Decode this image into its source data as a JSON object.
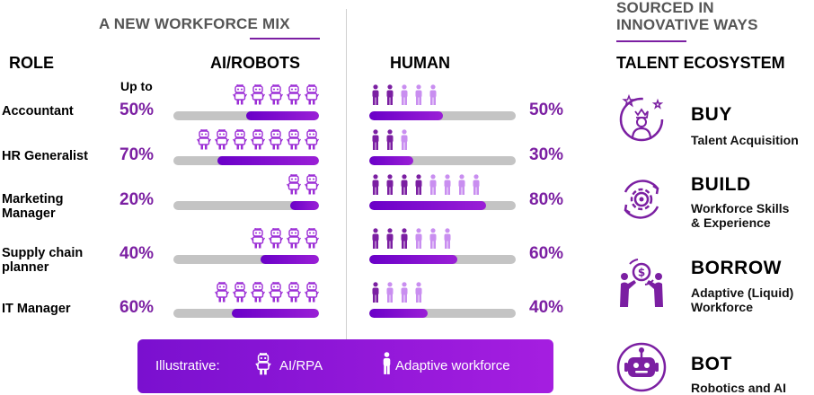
{
  "mix": {
    "title": "A NEW WORKFORCE MIX",
    "role_header": "ROLE",
    "robots_header": "AI/ROBOTS",
    "human_header": "HUMAN",
    "up_to": "Up to"
  },
  "roles": [
    {
      "name": "Accountant",
      "ai_pct": "50%",
      "human_pct": "50%",
      "ai_share": 0.5,
      "human_share": 0.5,
      "ai_icons": 5,
      "human_icons": 5,
      "human_dark": 2
    },
    {
      "name": "HR Generalist",
      "ai_pct": "70%",
      "human_pct": "30%",
      "ai_share": 0.7,
      "human_share": 0.3,
      "ai_icons": 7,
      "human_icons": 3,
      "human_dark": 2
    },
    {
      "name": "Marketing Manager",
      "ai_pct": "20%",
      "human_pct": "80%",
      "ai_share": 0.2,
      "human_share": 0.8,
      "ai_icons": 2,
      "human_icons": 8,
      "human_dark": 4
    },
    {
      "name": "Supply chain planner",
      "ai_pct": "40%",
      "human_pct": "60%",
      "ai_share": 0.4,
      "human_share": 0.6,
      "ai_icons": 4,
      "human_icons": 6,
      "human_dark": 3
    },
    {
      "name": "IT Manager",
      "ai_pct": "60%",
      "human_pct": "40%",
      "ai_share": 0.6,
      "human_share": 0.4,
      "ai_icons": 6,
      "human_icons": 4,
      "human_dark": 1
    }
  ],
  "legend": {
    "label": "Illustrative:",
    "ai_label": "AI/RPA",
    "human_label": "Adaptive workforce"
  },
  "ecosystem": {
    "title_line1": "SOURCED IN",
    "title_line2": "INNOVATIVE WAYS",
    "header": "TALENT ECOSYSTEM",
    "items": [
      {
        "name": "BUY",
        "desc1": "Talent Acquisition",
        "desc2": "",
        "icon": "crown-person-icon"
      },
      {
        "name": "BUILD",
        "desc1": "Workforce Skills",
        "desc2": "& Experience",
        "icon": "gear-cycle-icon"
      },
      {
        "name": "BORROW",
        "desc1": "Adaptive (Liquid)",
        "desc2": "Workforce",
        "icon": "dollar-exchange-icon"
      },
      {
        "name": "BOT",
        "desc1": "Robotics and AI",
        "desc2": "",
        "icon": "robot-face-icon"
      }
    ]
  },
  "colors": {
    "accent": "#7b1fa2",
    "bar_bg": "#c4c4c4",
    "human_light": "#c98ef0",
    "human_dark": "#7b1fa2"
  }
}
